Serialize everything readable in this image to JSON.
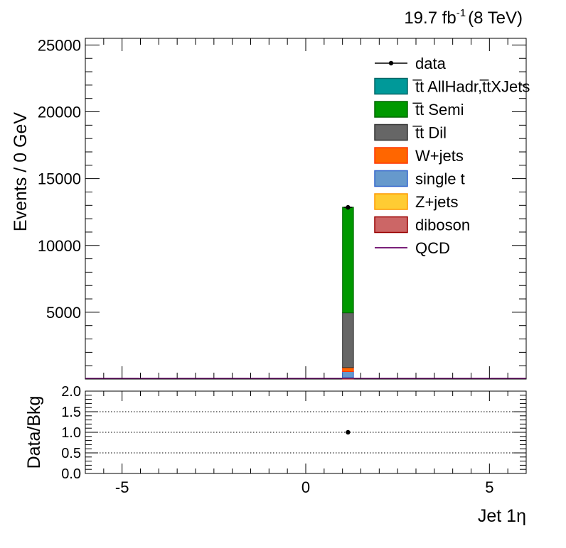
{
  "lumi": {
    "value": "19.7 fb",
    "exp": "-1",
    "energy": "(8 TeV)"
  },
  "chart_data": [
    {
      "type": "bar",
      "stacked": true,
      "ylabel": "Events / 0 GeV",
      "xlim": [
        -6,
        6
      ],
      "ylim": [
        0,
        25500
      ],
      "yticks": [
        5000,
        10000,
        15000,
        20000,
        25000
      ],
      "bin": [
        1.0,
        1.3
      ],
      "series": [
        {
          "name": "diboson",
          "value": 40,
          "fill": "#cc6666",
          "stroke": "#990000"
        },
        {
          "name": "Z+jets",
          "value": 70,
          "fill": "#ffcc33",
          "stroke": "#ff9900"
        },
        {
          "name": "single t",
          "value": 450,
          "fill": "#6699cc",
          "stroke": "#3366cc"
        },
        {
          "name": "W+jets",
          "value": 300,
          "fill": "#ff6600",
          "stroke": "#ff3300"
        },
        {
          "name": "t̅t Dil",
          "value": 4100,
          "fill": "#666666",
          "stroke": "#333333"
        },
        {
          "name": "t̅t Semi",
          "value": 7900,
          "fill": "#009900",
          "stroke": "#006600"
        },
        {
          "name": "t̅t AllHadr,t̅tXJets",
          "value": 0,
          "fill": "#009999",
          "stroke": "#006666"
        },
        {
          "name": "QCD",
          "value": 0,
          "fill": "none",
          "stroke": "#660066"
        }
      ],
      "data": {
        "name": "data",
        "x": 1.15,
        "y": 12850,
        "err": 120
      },
      "legend": [
        "data",
        "t̅t AllHadr,t̅tXJets",
        "t̅t Semi",
        "t̅t Dil",
        "W+jets",
        "single t",
        "Z+jets",
        "diboson",
        "QCD"
      ],
      "legend_position": "top-right"
    },
    {
      "type": "scatter",
      "ylabel": "Data/Bkg",
      "xlabel": "Jet 1η",
      "xlim": [
        -6,
        6
      ],
      "ylim": [
        0,
        2
      ],
      "yticks": [
        "0.0",
        "0.5",
        "1.0",
        "1.5",
        "2.0"
      ],
      "xticks": [
        "-5",
        "0",
        "5"
      ],
      "gridlines": [
        0.5,
        1.0,
        1.5
      ],
      "points": [
        {
          "x": 1.15,
          "y": 1.0
        }
      ]
    }
  ]
}
